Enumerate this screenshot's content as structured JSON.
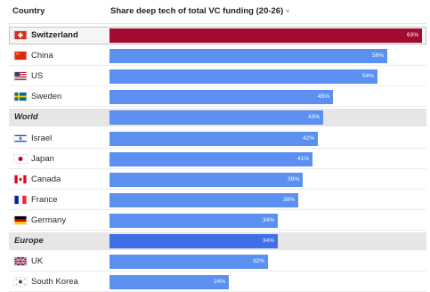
{
  "header": {
    "country_label": "Country",
    "share_label": "Share deep tech of total VC funding (20-26)",
    "sort_icon": "chevron-down-icon"
  },
  "colors": {
    "highlight_bar": "#a30b30",
    "bar": "#5b8ff0",
    "aggregate_bar": "#3f6fe6",
    "aggregate_bg": "#e6e6e6",
    "highlight_bg": "#f5f5f5"
  },
  "chart_data": {
    "type": "bar",
    "orientation": "horizontal",
    "title": "Share deep tech of total VC funding (20-26)",
    "xlim": [
      0,
      63
    ],
    "categories": [
      "Switzerland",
      "China",
      "US",
      "Sweden",
      "World",
      "Israel",
      "Japan",
      "Canada",
      "France",
      "Germany",
      "Europe",
      "UK",
      "South Korea"
    ],
    "values": [
      63,
      56,
      54,
      45,
      43,
      42,
      41,
      39,
      38,
      34,
      34,
      32,
      24
    ],
    "value_labels": [
      "63%",
      "56%",
      "54%",
      "45%",
      "43%",
      "42%",
      "41%",
      "39%",
      "38%",
      "34%",
      "34%",
      "32%",
      "24%"
    ],
    "rows": [
      {
        "label": "Switzerland",
        "value": 63,
        "value_label": "63%",
        "flag": "switzerland-flag-icon",
        "kind": "highlight"
      },
      {
        "label": "China",
        "value": 56,
        "value_label": "56%",
        "flag": "china-flag-icon",
        "kind": "country"
      },
      {
        "label": "US",
        "value": 54,
        "value_label": "54%",
        "flag": "us-flag-icon",
        "kind": "country"
      },
      {
        "label": "Sweden",
        "value": 45,
        "value_label": "45%",
        "flag": "sweden-flag-icon",
        "kind": "country"
      },
      {
        "label": "World",
        "value": 43,
        "value_label": "43%",
        "flag": "",
        "kind": "aggregate"
      },
      {
        "label": "Israel",
        "value": 42,
        "value_label": "42%",
        "flag": "israel-flag-icon",
        "kind": "country"
      },
      {
        "label": "Japan",
        "value": 41,
        "value_label": "41%",
        "flag": "japan-flag-icon",
        "kind": "country"
      },
      {
        "label": "Canada",
        "value": 39,
        "value_label": "39%",
        "flag": "canada-flag-icon",
        "kind": "country"
      },
      {
        "label": "France",
        "value": 38,
        "value_label": "38%",
        "flag": "france-flag-icon",
        "kind": "country"
      },
      {
        "label": "Germany",
        "value": 34,
        "value_label": "34%",
        "flag": "germany-flag-icon",
        "kind": "country"
      },
      {
        "label": "Europe",
        "value": 34,
        "value_label": "34%",
        "flag": "",
        "kind": "aggregate-dark"
      },
      {
        "label": "UK",
        "value": 32,
        "value_label": "32%",
        "flag": "uk-flag-icon",
        "kind": "country"
      },
      {
        "label": "South Korea",
        "value": 24,
        "value_label": "24%",
        "flag": "south-korea-flag-icon",
        "kind": "country"
      }
    ]
  }
}
